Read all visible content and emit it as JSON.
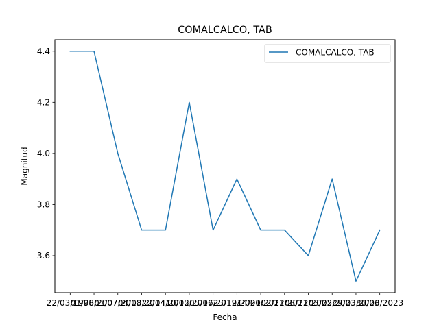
{
  "chart_data": {
    "type": "line",
    "title": "COMALCALCO, TAB",
    "xlabel": "Fecha",
    "ylabel": "Magnitud",
    "categories": [
      "22/03/1998",
      "01/06/2007",
      "01/07/2013",
      "04/08/2014",
      "22/04/2015",
      "10/02/2017",
      "05/06/2019",
      "25/12/2020",
      "14/01/2021",
      "02/12/2021",
      "08/12/2022",
      "03/05/2023",
      "29/03/2023",
      "30/06/2023"
    ],
    "series": [
      {
        "name": "COMALCALCO, TAB",
        "color": "#1f77b4",
        "values": [
          4.4,
          4.4,
          4.0,
          3.7,
          3.7,
          4.2,
          3.7,
          3.9,
          3.7,
          3.7,
          3.6,
          3.9,
          3.5,
          3.7
        ]
      }
    ],
    "ylim": [
      3.455,
      4.445
    ],
    "yticks": [
      "3.6",
      "3.8",
      "4.0",
      "4.2",
      "4.4"
    ],
    "grid": false,
    "legend": "top-right"
  }
}
